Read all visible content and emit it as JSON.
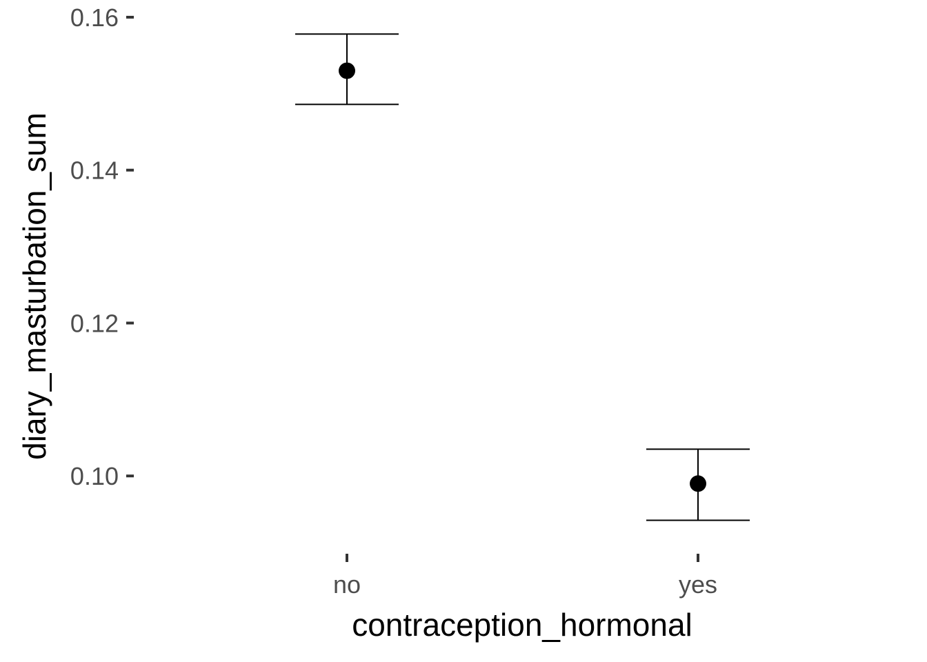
{
  "chart_data": {
    "type": "scatter",
    "title": "",
    "xlabel": "contraception_hormonal",
    "ylabel": "diary_masturbation_sum",
    "categories": [
      "no",
      "yes"
    ],
    "values": [
      0.153,
      0.099
    ],
    "ci_upper": [
      0.1578,
      0.1035
    ],
    "ci_lower": [
      0.1486,
      0.0942
    ],
    "y_ticks": [
      0.1,
      0.12,
      0.14,
      0.16
    ],
    "y_tick_labels": [
      "0.10",
      "0.12",
      "0.14",
      "0.16"
    ],
    "ylim": [
      0.091,
      0.1618
    ],
    "grid": false,
    "legend": "none"
  }
}
